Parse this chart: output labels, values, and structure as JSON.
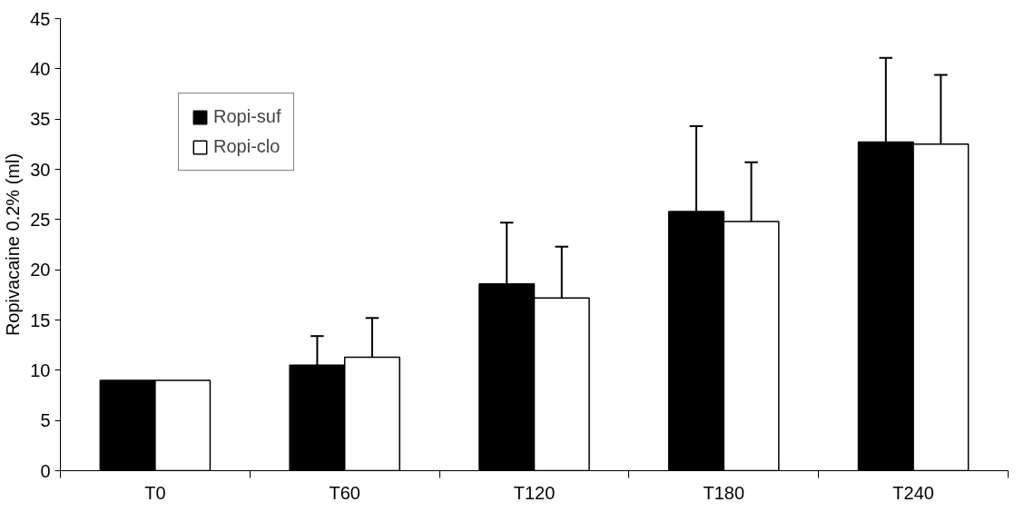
{
  "chart_data": {
    "type": "bar",
    "ylabel": "Ropivacaine 0.2% (ml)",
    "categories": [
      "T0",
      "T60",
      "T120",
      "T180",
      "T240"
    ],
    "series": [
      {
        "name": "Ropi-suf",
        "color": "#000000",
        "values": [
          9.0,
          10.5,
          18.6,
          25.8,
          32.7
        ],
        "errors": [
          null,
          [
            10.5,
            13.4
          ],
          [
            18.6,
            24.7
          ],
          [
            25.8,
            34.3
          ],
          [
            32.7,
            41.1
          ]
        ]
      },
      {
        "name": "Ropi-clo",
        "color": "#ffffff",
        "values": [
          9.0,
          11.3,
          17.2,
          24.8,
          32.5
        ],
        "errors": [
          null,
          [
            11.3,
            15.2
          ],
          [
            17.2,
            22.3
          ],
          [
            24.8,
            30.7
          ],
          [
            32.5,
            39.4
          ]
        ]
      }
    ],
    "ylim": [
      0,
      45
    ],
    "yticks": [
      0,
      5,
      10,
      15,
      20,
      25,
      30,
      35,
      40,
      45
    ],
    "grid": false,
    "legend": "top left"
  }
}
